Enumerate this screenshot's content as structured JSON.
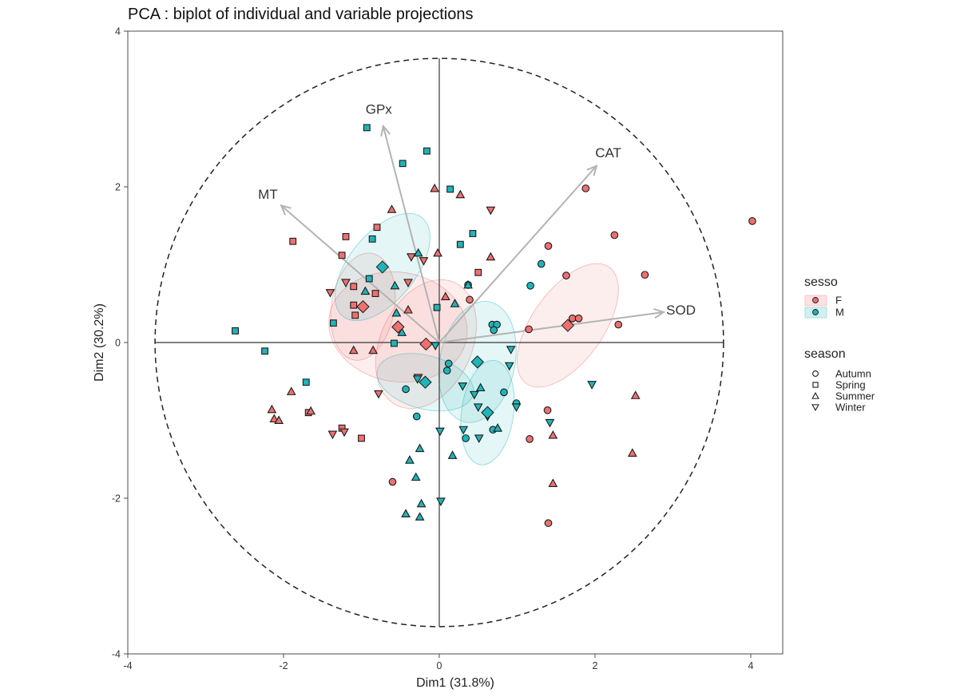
{
  "chart_data": {
    "type": "scatter",
    "title": "PCA : biplot of individual and variable projections",
    "xlabel": "Dim1 (31.8%)",
    "ylabel": "Dim2 (30.2%)",
    "xlim": [
      -4,
      4.4
    ],
    "ylim": [
      -4,
      4
    ],
    "xticks": [
      -4,
      -2,
      0,
      2,
      4
    ],
    "yticks": [
      -4,
      -2,
      0,
      2,
      4
    ],
    "grid": false,
    "legend_position": "right",
    "correlation_circle_radius": 3.65,
    "colors": {
      "F": "#F07070",
      "M": "#1FB5B8"
    },
    "legend": {
      "sesso": {
        "title": "sesso",
        "items": [
          "F",
          "M"
        ]
      },
      "season": {
        "title": "season",
        "items": [
          "Autumn",
          "Spring",
          "Summer",
          "Winter"
        ]
      }
    },
    "variables": [
      {
        "name": "GPx",
        "x": -0.72,
        "y": 2.78
      },
      {
        "name": "CAT",
        "x": 2.02,
        "y": 2.27
      },
      {
        "name": "MT",
        "x": -2.03,
        "y": 1.76
      },
      {
        "name": "SOD",
        "x": 2.88,
        "y": 0.39
      }
    ],
    "group_centers": [
      {
        "sex": "F",
        "season": "Autumn",
        "x": 1.65,
        "y": 0.22
      },
      {
        "sex": "F",
        "season": "Spring",
        "x": -0.98,
        "y": 0.46
      },
      {
        "sex": "F",
        "season": "Summer",
        "x": -0.53,
        "y": 0.2
      },
      {
        "sex": "F",
        "season": "Winter",
        "x": -0.17,
        "y": -0.02
      },
      {
        "sex": "M",
        "season": "Autumn",
        "x": 0.62,
        "y": -0.9
      },
      {
        "sex": "M",
        "season": "Spring",
        "x": -0.73,
        "y": 0.97
      },
      {
        "sex": "M",
        "season": "Summer",
        "x": 0.49,
        "y": -0.25
      },
      {
        "sex": "M",
        "season": "Winter",
        "x": -0.18,
        "y": -0.51
      }
    ],
    "points": [
      {
        "sex": "F",
        "season": "Autumn",
        "x": 4.02,
        "y": 1.56
      },
      {
        "sex": "F",
        "season": "Autumn",
        "x": 1.88,
        "y": 1.98
      },
      {
        "sex": "F",
        "season": "Autumn",
        "x": 2.25,
        "y": 1.38
      },
      {
        "sex": "F",
        "season": "Autumn",
        "x": 1.4,
        "y": 1.24
      },
      {
        "sex": "F",
        "season": "Autumn",
        "x": 1.63,
        "y": 0.86
      },
      {
        "sex": "F",
        "season": "Autumn",
        "x": 2.64,
        "y": 0.87
      },
      {
        "sex": "F",
        "season": "Autumn",
        "x": 1.71,
        "y": 0.31
      },
      {
        "sex": "F",
        "season": "Autumn",
        "x": 1.79,
        "y": 0.31
      },
      {
        "sex": "F",
        "season": "Autumn",
        "x": 1.15,
        "y": 0.17
      },
      {
        "sex": "F",
        "season": "Autumn",
        "x": 2.3,
        "y": 0.23
      },
      {
        "sex": "F",
        "season": "Autumn",
        "x": 0.39,
        "y": 0.55
      },
      {
        "sex": "F",
        "season": "Autumn",
        "x": 1.39,
        "y": -0.87
      },
      {
        "sex": "F",
        "season": "Autumn",
        "x": 1.16,
        "y": -1.24
      },
      {
        "sex": "F",
        "season": "Autumn",
        "x": 1.4,
        "y": -2.32
      },
      {
        "sex": "F",
        "season": "Autumn",
        "x": -0.6,
        "y": -1.79
      },
      {
        "sex": "F",
        "season": "Spring",
        "x": -1.88,
        "y": 1.3
      },
      {
        "sex": "F",
        "season": "Spring",
        "x": -1.2,
        "y": 1.36
      },
      {
        "sex": "F",
        "season": "Spring",
        "x": -0.8,
        "y": 1.48
      },
      {
        "sex": "F",
        "season": "Spring",
        "x": -1.25,
        "y": 1.12
      },
      {
        "sex": "F",
        "season": "Spring",
        "x": 0.5,
        "y": 0.9
      },
      {
        "sex": "F",
        "season": "Spring",
        "x": -1.1,
        "y": 0.72
      },
      {
        "sex": "F",
        "season": "Spring",
        "x": -0.82,
        "y": 0.63
      },
      {
        "sex": "F",
        "season": "Spring",
        "x": -1.1,
        "y": 0.48
      },
      {
        "sex": "F",
        "season": "Spring",
        "x": -1.08,
        "y": 0.35
      },
      {
        "sex": "F",
        "season": "Spring",
        "x": -1.68,
        "y": -0.9
      },
      {
        "sex": "F",
        "season": "Spring",
        "x": -1.25,
        "y": -1.1
      },
      {
        "sex": "F",
        "season": "Spring",
        "x": -1.0,
        "y": -1.23
      },
      {
        "sex": "F",
        "season": "Summer",
        "x": -0.06,
        "y": 1.98
      },
      {
        "sex": "F",
        "season": "Summer",
        "x": 0.27,
        "y": 1.9
      },
      {
        "sex": "F",
        "season": "Summer",
        "x": -0.61,
        "y": 1.71
      },
      {
        "sex": "F",
        "season": "Summer",
        "x": -0.02,
        "y": 1.15
      },
      {
        "sex": "F",
        "season": "Summer",
        "x": 0.66,
        "y": 1.1
      },
      {
        "sex": "F",
        "season": "Summer",
        "x": -0.4,
        "y": 0.42
      },
      {
        "sex": "F",
        "season": "Summer",
        "x": 0.08,
        "y": 0.59
      },
      {
        "sex": "F",
        "season": "Summer",
        "x": -1.1,
        "y": -0.1
      },
      {
        "sex": "F",
        "season": "Summer",
        "x": -0.85,
        "y": -0.1
      },
      {
        "sex": "F",
        "season": "Summer",
        "x": -1.9,
        "y": -0.63
      },
      {
        "sex": "F",
        "season": "Summer",
        "x": -2.15,
        "y": -0.86
      },
      {
        "sex": "F",
        "season": "Summer",
        "x": -2.12,
        "y": -0.98
      },
      {
        "sex": "F",
        "season": "Summer",
        "x": -2.06,
        "y": -1.0
      },
      {
        "sex": "F",
        "season": "Summer",
        "x": -1.65,
        "y": -0.88
      },
      {
        "sex": "F",
        "season": "Summer",
        "x": 2.52,
        "y": -0.68
      },
      {
        "sex": "F",
        "season": "Summer",
        "x": 1.46,
        "y": -1.19
      },
      {
        "sex": "F",
        "season": "Summer",
        "x": 2.48,
        "y": -1.42
      },
      {
        "sex": "F",
        "season": "Summer",
        "x": 1.46,
        "y": -1.81
      },
      {
        "sex": "F",
        "season": "Winter",
        "x": 0.66,
        "y": 1.7
      },
      {
        "sex": "F",
        "season": "Winter",
        "x": -0.36,
        "y": 1.1
      },
      {
        "sex": "F",
        "season": "Winter",
        "x": -0.2,
        "y": 1.05
      },
      {
        "sex": "F",
        "season": "Winter",
        "x": -1.2,
        "y": 0.77
      },
      {
        "sex": "F",
        "season": "Winter",
        "x": -0.4,
        "y": 0.77
      },
      {
        "sex": "F",
        "season": "Winter",
        "x": -1.4,
        "y": 0.64
      },
      {
        "sex": "F",
        "season": "Winter",
        "x": -0.78,
        "y": -0.66
      },
      {
        "sex": "F",
        "season": "Winter",
        "x": -1.37,
        "y": -1.18
      },
      {
        "sex": "F",
        "season": "Winter",
        "x": -1.22,
        "y": -1.15
      },
      {
        "sex": "F",
        "season": "Winter",
        "x": -0.27,
        "y": -0.45
      },
      {
        "sex": "M",
        "season": "Autumn",
        "x": 0.37,
        "y": 0.74
      },
      {
        "sex": "M",
        "season": "Autumn",
        "x": 1.31,
        "y": 1.01
      },
      {
        "sex": "M",
        "season": "Autumn",
        "x": 1.17,
        "y": 0.73
      },
      {
        "sex": "M",
        "season": "Autumn",
        "x": 0.68,
        "y": 0.23
      },
      {
        "sex": "M",
        "season": "Autumn",
        "x": 0.74,
        "y": 0.23
      },
      {
        "sex": "M",
        "season": "Autumn",
        "x": 0.7,
        "y": 0.16
      },
      {
        "sex": "M",
        "season": "Autumn",
        "x": 0.12,
        "y": -0.27
      },
      {
        "sex": "M",
        "season": "Autumn",
        "x": 0.1,
        "y": -0.36
      },
      {
        "sex": "M",
        "season": "Autumn",
        "x": -0.43,
        "y": -0.6
      },
      {
        "sex": "M",
        "season": "Autumn",
        "x": -0.29,
        "y": -0.95
      },
      {
        "sex": "M",
        "season": "Autumn",
        "x": 0.83,
        "y": -0.64
      },
      {
        "sex": "M",
        "season": "Autumn",
        "x": 0.99,
        "y": -0.78
      },
      {
        "sex": "M",
        "season": "Autumn",
        "x": 0.69,
        "y": -1.12
      },
      {
        "sex": "M",
        "season": "Autumn",
        "x": 0.34,
        "y": -1.23
      },
      {
        "sex": "M",
        "season": "Spring",
        "x": -0.93,
        "y": 2.76
      },
      {
        "sex": "M",
        "season": "Spring",
        "x": -0.16,
        "y": 2.46
      },
      {
        "sex": "M",
        "season": "Spring",
        "x": -0.47,
        "y": 2.3
      },
      {
        "sex": "M",
        "season": "Spring",
        "x": 0.14,
        "y": 1.97
      },
      {
        "sex": "M",
        "season": "Spring",
        "x": 0.43,
        "y": 1.4
      },
      {
        "sex": "M",
        "season": "Spring",
        "x": 0.27,
        "y": 1.26
      },
      {
        "sex": "M",
        "season": "Spring",
        "x": -0.86,
        "y": 1.33
      },
      {
        "sex": "M",
        "season": "Spring",
        "x": -0.03,
        "y": 0.45
      },
      {
        "sex": "M",
        "season": "Spring",
        "x": -0.9,
        "y": 0.82
      },
      {
        "sex": "M",
        "season": "Spring",
        "x": -1.36,
        "y": 0.25
      },
      {
        "sex": "M",
        "season": "Spring",
        "x": -0.58,
        "y": -0.01
      },
      {
        "sex": "M",
        "season": "Spring",
        "x": -2.62,
        "y": 0.15
      },
      {
        "sex": "M",
        "season": "Spring",
        "x": -2.24,
        "y": -0.11
      },
      {
        "sex": "M",
        "season": "Spring",
        "x": -1.71,
        "y": -0.51
      },
      {
        "sex": "M",
        "season": "Summer",
        "x": -0.27,
        "y": 1.15
      },
      {
        "sex": "M",
        "season": "Summer",
        "x": -0.57,
        "y": 0.73
      },
      {
        "sex": "M",
        "season": "Summer",
        "x": -0.55,
        "y": 0.38
      },
      {
        "sex": "M",
        "season": "Summer",
        "x": -0.48,
        "y": 0.13
      },
      {
        "sex": "M",
        "season": "Summer",
        "x": 0.2,
        "y": 0.5
      },
      {
        "sex": "M",
        "season": "Summer",
        "x": 0.37,
        "y": 0.74
      },
      {
        "sex": "M",
        "season": "Summer",
        "x": -0.95,
        "y": 0.66
      },
      {
        "sex": "M",
        "season": "Summer",
        "x": -0.25,
        "y": -1.36
      },
      {
        "sex": "M",
        "season": "Summer",
        "x": 0.17,
        "y": -1.45
      },
      {
        "sex": "M",
        "season": "Summer",
        "x": -0.38,
        "y": -1.51
      },
      {
        "sex": "M",
        "season": "Summer",
        "x": -0.3,
        "y": -1.73
      },
      {
        "sex": "M",
        "season": "Summer",
        "x": -0.43,
        "y": -2.2
      },
      {
        "sex": "M",
        "season": "Summer",
        "x": -0.23,
        "y": -2.07
      },
      {
        "sex": "M",
        "season": "Summer",
        "x": -0.25,
        "y": -2.24
      },
      {
        "sex": "M",
        "season": "Summer",
        "x": 0.53,
        "y": -0.58
      },
      {
        "sex": "M",
        "season": "Summer",
        "x": 0.75,
        "y": -1.1
      },
      {
        "sex": "M",
        "season": "Winter",
        "x": -0.05,
        "y": -0.04
      },
      {
        "sex": "M",
        "season": "Winter",
        "x": -0.28,
        "y": -0.47
      },
      {
        "sex": "M",
        "season": "Winter",
        "x": 0.92,
        "y": -0.09
      },
      {
        "sex": "M",
        "season": "Winter",
        "x": 0.3,
        "y": -0.56
      },
      {
        "sex": "M",
        "season": "Winter",
        "x": 0.45,
        "y": -0.67
      },
      {
        "sex": "M",
        "season": "Winter",
        "x": 0.5,
        "y": -0.83
      },
      {
        "sex": "M",
        "season": "Winter",
        "x": 0.62,
        "y": -0.95
      },
      {
        "sex": "M",
        "season": "Winter",
        "x": 0.9,
        "y": -0.3
      },
      {
        "sex": "M",
        "season": "Winter",
        "x": 0.99,
        "y": -0.83
      },
      {
        "sex": "M",
        "season": "Winter",
        "x": 1.96,
        "y": -0.54
      },
      {
        "sex": "M",
        "season": "Winter",
        "x": 1.42,
        "y": -1.03
      },
      {
        "sex": "M",
        "season": "Winter",
        "x": 0.01,
        "y": -1.14
      },
      {
        "sex": "M",
        "season": "Winter",
        "x": 0.31,
        "y": -1.12
      },
      {
        "sex": "M",
        "season": "Winter",
        "x": 0.51,
        "y": -1.23
      },
      {
        "sex": "M",
        "season": "Winter",
        "x": 0.02,
        "y": -2.04
      }
    ]
  }
}
